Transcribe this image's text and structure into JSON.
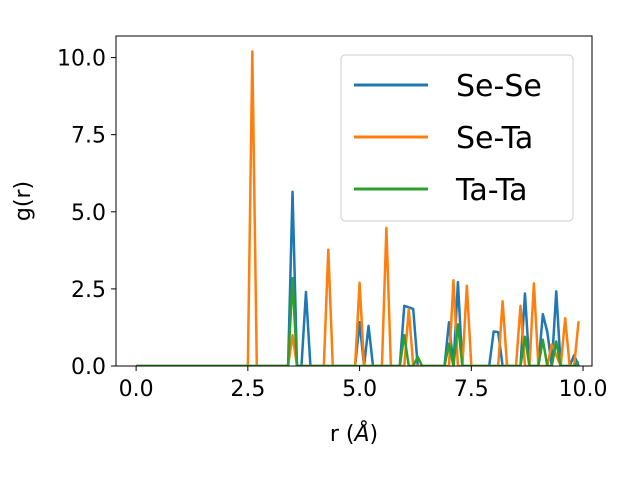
{
  "chart_data": {
    "type": "line",
    "xlabel_prefix": "r (",
    "xlabel_unit": "Å",
    "xlabel_suffix": ")",
    "ylabel": "g(r)",
    "xlim": [
      -0.45,
      10.2
    ],
    "ylim": [
      0,
      10.7
    ],
    "xticks": [
      0.0,
      2.5,
      5.0,
      7.5,
      10.0
    ],
    "xtick_labels": [
      "0.0",
      "2.5",
      "5.0",
      "7.5",
      "10.0"
    ],
    "yticks": [
      0.0,
      2.5,
      5.0,
      7.5,
      10.0
    ],
    "ytick_labels": [
      "0.0",
      "2.5",
      "5.0",
      "7.5",
      "10.0"
    ],
    "grid": false,
    "legend_position": "top-right",
    "series": [
      {
        "name": "Se-Se",
        "color": "#1f77b4",
        "x": [
          0.0,
          3.4,
          3.5,
          3.6,
          3.7,
          3.8,
          3.9,
          4.9,
          5.0,
          5.1,
          5.2,
          5.3,
          5.9,
          6.0,
          6.2,
          6.3,
          6.9,
          7.0,
          7.1,
          7.2,
          7.3,
          7.9,
          8.0,
          8.1,
          8.2,
          8.6,
          8.7,
          8.8,
          9.0,
          9.1,
          9.2,
          9.3,
          9.4,
          9.5,
          9.7,
          9.8,
          9.9
        ],
        "y": [
          0.0,
          0.0,
          5.65,
          0.0,
          0.0,
          2.4,
          0.0,
          0.0,
          1.42,
          0.0,
          1.3,
          0.0,
          0.0,
          1.95,
          1.85,
          0.0,
          0.0,
          1.42,
          0.0,
          2.72,
          0.0,
          0.0,
          1.12,
          1.1,
          0.0,
          0.0,
          2.35,
          0.0,
          0.0,
          1.68,
          1.1,
          0.0,
          2.42,
          0.0,
          0.0,
          0.35,
          0.0
        ]
      },
      {
        "name": "Se-Ta",
        "color": "#ff7f0e",
        "x": [
          0.0,
          2.5,
          2.6,
          2.7,
          3.4,
          3.5,
          3.6,
          4.2,
          4.3,
          4.4,
          4.9,
          5.0,
          5.1,
          5.2,
          5.5,
          5.6,
          5.7,
          6.0,
          6.1,
          6.2,
          7.0,
          7.1,
          7.2,
          7.3,
          7.4,
          7.5,
          8.1,
          8.2,
          8.3,
          8.5,
          8.6,
          8.7,
          8.8,
          8.9,
          9.0,
          9.2,
          9.3,
          9.5,
          9.6,
          9.7,
          9.8,
          9.9
        ],
        "y": [
          0.0,
          0.0,
          10.2,
          0.0,
          0.0,
          1.0,
          0.0,
          0.0,
          3.77,
          0.0,
          0.0,
          2.7,
          0.0,
          0.0,
          0.0,
          4.48,
          0.0,
          0.0,
          1.85,
          0.0,
          0.0,
          2.78,
          0.0,
          0.0,
          2.6,
          0.0,
          0.0,
          2.1,
          0.0,
          0.0,
          1.95,
          0.0,
          0.0,
          2.68,
          0.0,
          0.0,
          0.7,
          0.0,
          1.55,
          0.0,
          0.0,
          1.45
        ]
      },
      {
        "name": "Ta-Ta",
        "color": "#2ca02c",
        "x": [
          0.0,
          3.4,
          3.5,
          3.6,
          5.9,
          6.0,
          6.1,
          6.2,
          6.3,
          6.4,
          6.9,
          7.0,
          7.1,
          7.2,
          7.3,
          8.6,
          8.7,
          8.8,
          9.0,
          9.1,
          9.2,
          9.3,
          9.4,
          9.5,
          9.8,
          9.9
        ],
        "y": [
          0.0,
          0.0,
          2.85,
          0.0,
          0.0,
          1.0,
          0.0,
          0.0,
          0.3,
          0.0,
          0.0,
          0.72,
          0.0,
          1.35,
          0.0,
          0.0,
          0.95,
          0.0,
          0.0,
          0.85,
          0.0,
          0.0,
          0.8,
          0.0,
          0.0,
          0.15
        ]
      }
    ]
  }
}
